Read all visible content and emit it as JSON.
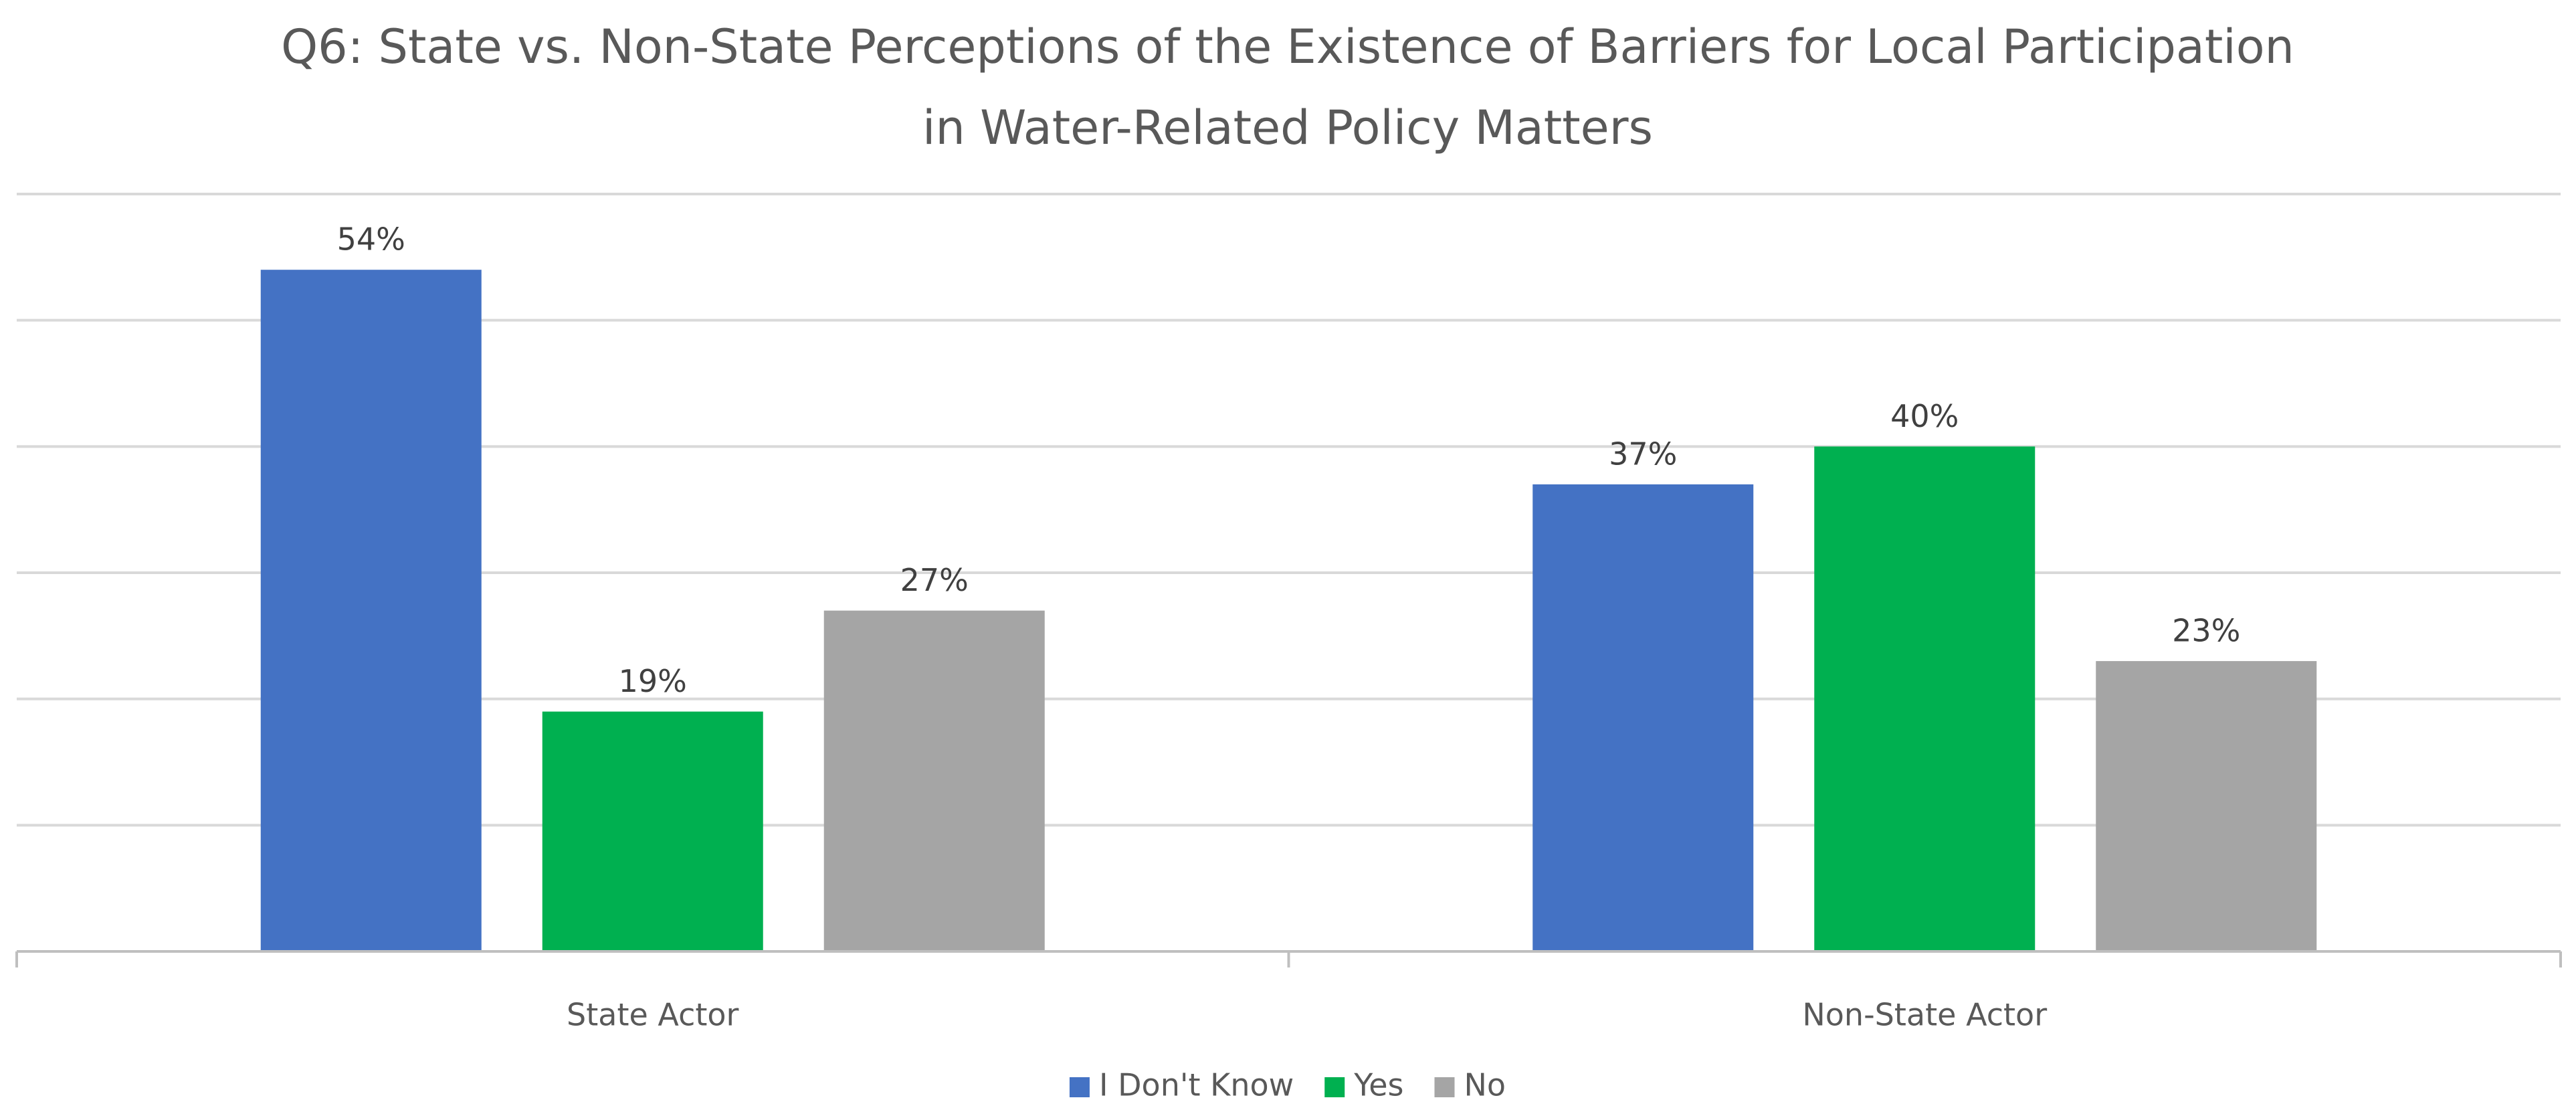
{
  "chart_data": {
    "type": "bar",
    "title": "Q6: State vs. Non-State Perceptions of the Existence of Barriers for Local Participation in Water-Related Policy Matters",
    "title_lines": [
      "Q6: State vs. Non-State Perceptions of the Existence of Barriers for Local Participation",
      "in Water-Related Policy Matters"
    ],
    "categories": [
      "State Actor",
      "Non-State Actor"
    ],
    "series": [
      {
        "name": "I Don't Know",
        "color": "#4472C4",
        "values": [
          54,
          37
        ],
        "labels": [
          "54%",
          "37%"
        ]
      },
      {
        "name": "Yes",
        "color": "#00B050",
        "values": [
          19,
          40
        ],
        "labels": [
          "19%",
          "40%"
        ]
      },
      {
        "name": "No",
        "color": "#A5A5A5",
        "values": [
          27,
          23
        ],
        "labels": [
          "27%",
          "23%"
        ]
      }
    ],
    "xlabel": "",
    "ylabel": "",
    "ylim": [
      0,
      60
    ],
    "y_gridline_step": 10,
    "grid": true,
    "legend_position": "bottom",
    "unit": "%"
  }
}
